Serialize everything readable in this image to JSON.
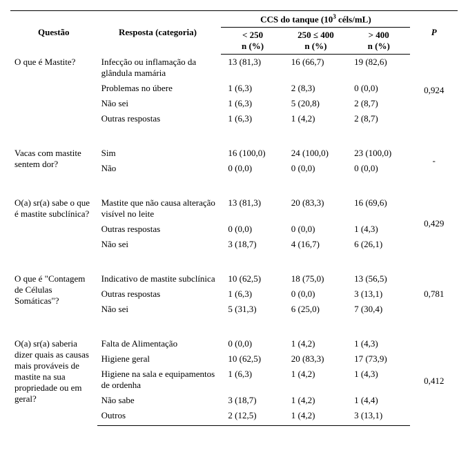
{
  "header": {
    "questao": "Questão",
    "resposta": "Resposta (categoria)",
    "ccs_title_pre": "CCS do tanque (10",
    "ccs_title_sup": "3",
    "ccs_title_post": " céls/mL)",
    "p": "P",
    "col1_line1": "< 250",
    "col2_line1": "250 ≤ 400",
    "col3_line1": "> 400",
    "n_pct": "n (%)"
  },
  "groups": [
    {
      "questao": "O que é Mastite?",
      "p": "0,924",
      "rows": [
        {
          "resposta": "Infecção ou inflamação da glândula mamária",
          "c1": "13 (81,3)",
          "c2": "16 (66,7)",
          "c3": "19 (82,6)"
        },
        {
          "resposta": "Problemas no úbere",
          "c1": "1 (6,3)",
          "c2": "2 (8,3)",
          "c3": "0 (0,0)"
        },
        {
          "resposta": "Não sei",
          "c1": "1 (6,3)",
          "c2": "5 (20,8)",
          "c3": "2 (8,7)"
        },
        {
          "resposta": "Outras respostas",
          "c1": "1 (6,3)",
          "c2": "1 (4,2)",
          "c3": "2 (8,7)"
        }
      ]
    },
    {
      "questao": "Vacas com mastite sentem dor?",
      "p": "-",
      "rows": [
        {
          "resposta": "Sim",
          "c1": "16 (100,0)",
          "c2": "24 (100,0)",
          "c3": "23 (100,0)"
        },
        {
          "resposta": "Não",
          "c1": "0 (0,0)",
          "c2": "0 (0,0)",
          "c3": "0 (0,0)"
        }
      ]
    },
    {
      "questao": "O(a) sr(a) sabe o que é mastite subclínica?",
      "p": "0,429",
      "rows": [
        {
          "resposta": "Mastite que não causa alteração visível no leite",
          "c1": "13 (81,3)",
          "c2": "20 (83,3)",
          "c3": "16 (69,6)"
        },
        {
          "resposta": "Outras respostas",
          "c1": "0 (0,0)",
          "c2": "0 (0,0)",
          "c3": "1 (4,3)"
        },
        {
          "resposta": "Não sei",
          "c1": "3 (18,7)",
          "c2": "4 (16,7)",
          "c3": "6 (26,1)"
        }
      ]
    },
    {
      "questao": "O que é \"Contagem de Células Somáticas\"?",
      "p": "0,781",
      "rows": [
        {
          "resposta": "Indicativo de mastite subclínica",
          "c1": "10 (62,5)",
          "c2": "18 (75,0)",
          "c3": "13 (56,5)"
        },
        {
          "resposta": "Outras respostas",
          "c1": "1 (6,3)",
          "c2": "0 (0,0)",
          "c3": "3 (13,1)"
        },
        {
          "resposta": "Não sei",
          "c1": "5 (31,3)",
          "c2": "6 (25,0)",
          "c3": "7 (30,4)"
        }
      ]
    },
    {
      "questao": "O(a) sr(a) saberia dizer quais as causas mais prováveis de mastite na sua propriedade ou em geral?",
      "p": "0,412",
      "rows": [
        {
          "resposta": "Falta de Alimentação",
          "c1": "0 (0,0)",
          "c2": "1 (4,2)",
          "c3": "1 (4,3)"
        },
        {
          "resposta": "Higiene geral",
          "c1": "10 (62,5)",
          "c2": "20 (83,3)",
          "c3": "17 (73,9)"
        },
        {
          "resposta": "Higiene na sala e equipamentos de ordenha",
          "c1": "1 (6,3)",
          "c2": "1 (4,2)",
          "c3": "1 (4,3)"
        },
        {
          "resposta": "Não sabe",
          "c1": "3 (18,7)",
          "c2": "1 (4,2)",
          "c3": "1 (4,4)"
        },
        {
          "resposta": "Outros",
          "c1": "2 (12,5)",
          "c2": "1 (4,2)",
          "c3": "3 (13,1)"
        }
      ]
    }
  ]
}
